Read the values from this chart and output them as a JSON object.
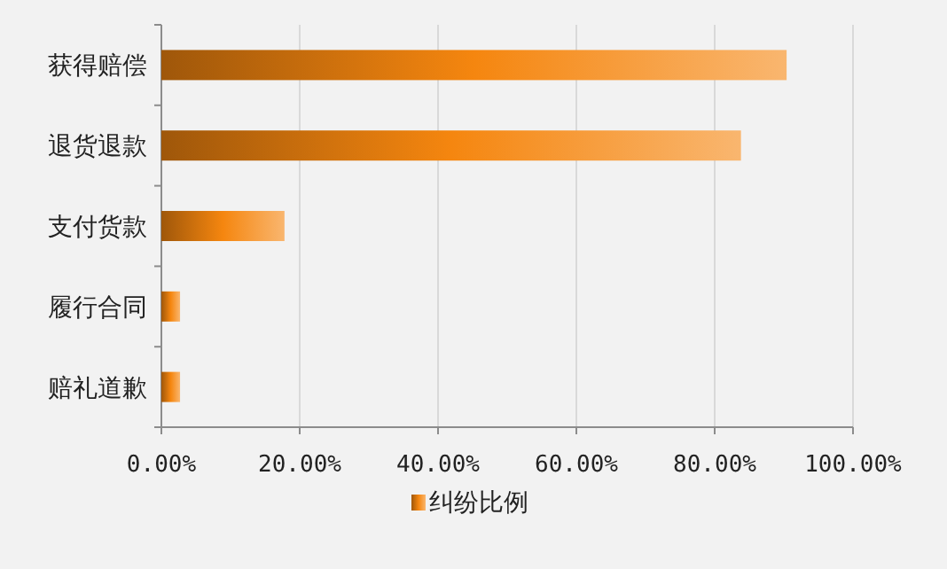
{
  "chart_data": {
    "type": "bar",
    "orientation": "horizontal",
    "categories": [
      "获得赔偿",
      "退货退款",
      "支付货款",
      "履行合同",
      "赔礼道歉"
    ],
    "series": [
      {
        "name": "纠纷比例",
        "color": "#f5860f",
        "values": [
          90.4,
          83.8,
          17.8,
          2.7,
          2.7
        ]
      }
    ],
    "xlim": [
      0,
      100
    ],
    "xticks": [
      {
        "value": 0,
        "label": "0.00%"
      },
      {
        "value": 20,
        "label": "20.00%"
      },
      {
        "value": 40,
        "label": "40.00%"
      },
      {
        "value": 60,
        "label": "60.00%"
      },
      {
        "value": 80,
        "label": "80.00%"
      },
      {
        "value": 100,
        "label": "100.00%"
      }
    ],
    "grid": "x",
    "legend": "bottom"
  }
}
